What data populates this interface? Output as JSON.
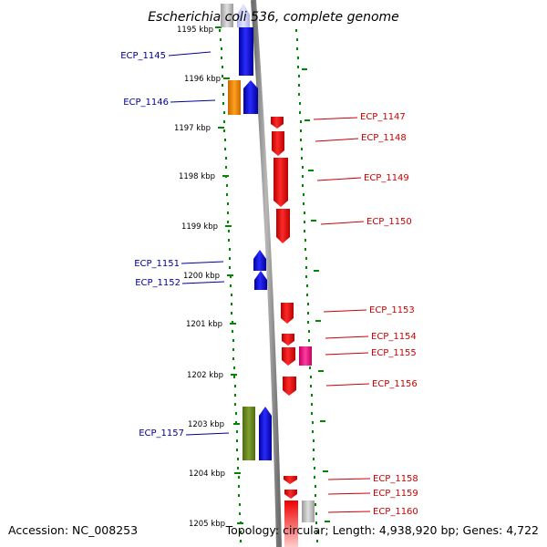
{
  "title": "Escherichia coli 536, complete genome",
  "footer": {
    "accession": "Accession: NC_008253",
    "topology": "Topology: circular; Length: 4,938,920 bp; Genes: 4,722"
  },
  "colors": {
    "forward_gene": "#0000ee",
    "reverse_gene": "#ee0000",
    "gene_label_left": "#000099",
    "gene_label_right": "#cc0000",
    "dots": "#008800",
    "backbone": "#888888"
  },
  "scale_ticks": [
    {
      "label": "1195 kbp",
      "kbp": 1195
    },
    {
      "label": "1196 kbp",
      "kbp": 1196
    },
    {
      "label": "1197 kbp",
      "kbp": 1197
    },
    {
      "label": "1198 kbp",
      "kbp": 1198
    },
    {
      "label": "1199 kbp",
      "kbp": 1199
    },
    {
      "label": "1200 kbp",
      "kbp": 1200
    },
    {
      "label": "1201 kbp",
      "kbp": 1201
    },
    {
      "label": "1202 kbp",
      "kbp": 1202
    },
    {
      "label": "1203 kbp",
      "kbp": 1203
    },
    {
      "label": "1204 kbp",
      "kbp": 1204
    },
    {
      "label": "1205 kbp",
      "kbp": 1205
    }
  ],
  "gene_labels": [
    {
      "label": "ECP_1145",
      "side": "left"
    },
    {
      "label": "ECP_1146",
      "side": "left"
    },
    {
      "label": "ECP_1147",
      "side": "right"
    },
    {
      "label": "ECP_1148",
      "side": "right"
    },
    {
      "label": "ECP_1149",
      "side": "right"
    },
    {
      "label": "ECP_1150",
      "side": "right"
    },
    {
      "label": "ECP_1151",
      "side": "left"
    },
    {
      "label": "ECP_1152",
      "side": "left"
    },
    {
      "label": "ECP_1153",
      "side": "right"
    },
    {
      "label": "ECP_1154",
      "side": "right"
    },
    {
      "label": "ECP_1155",
      "side": "right"
    },
    {
      "label": "ECP_1156",
      "side": "right"
    },
    {
      "label": "ECP_1157",
      "side": "left"
    },
    {
      "label": "ECP_1158",
      "side": "right"
    },
    {
      "label": "ECP_1159",
      "side": "right"
    },
    {
      "label": "ECP_1160",
      "side": "right"
    }
  ]
}
